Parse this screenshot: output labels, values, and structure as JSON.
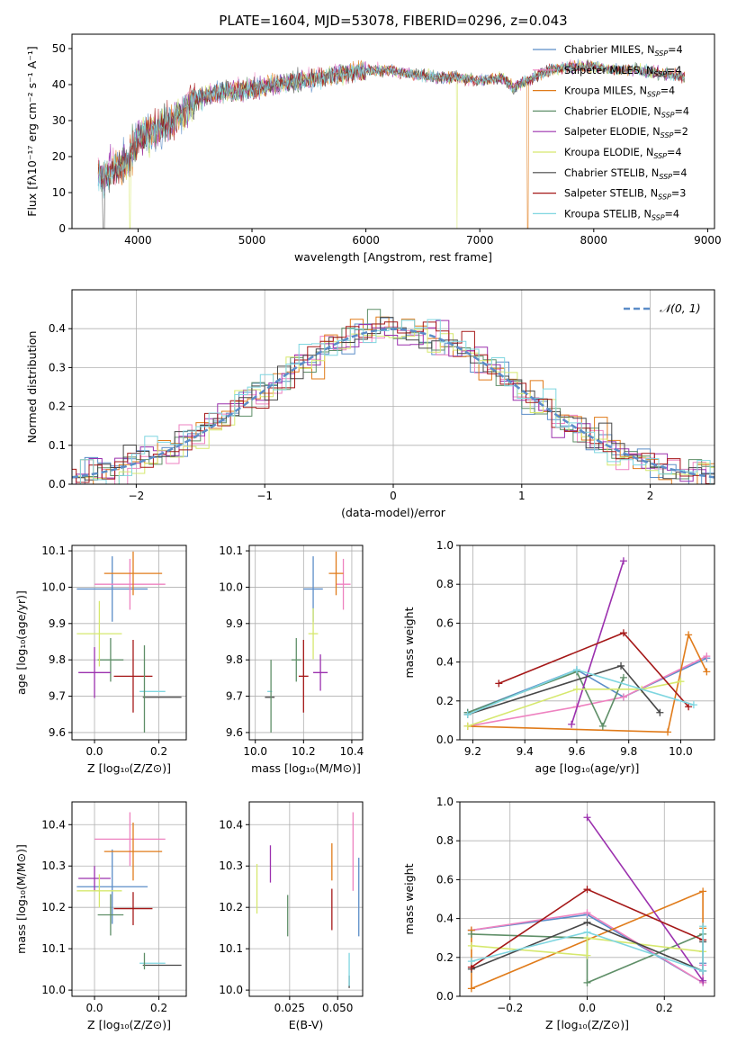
{
  "colors": {
    "c_miles": "#5b8dc8",
    "s_miles": "#ee82c0",
    "k_miles": "#e07b1a",
    "c_elodie": "#5f8f68",
    "s_elodie": "#9b30ae",
    "k_elodie": "#d6e86e",
    "c_stelib": "#474747",
    "s_stelib": "#a51818",
    "k_stelib": "#7fd6e0",
    "normal": "#5b8dc8"
  },
  "chart_data": [
    {
      "id": "spectrum",
      "type": "line",
      "title": "PLATE=1604, MJD=53078, FIBERID=0296, z=0.043",
      "xlabel": "wavelength [Angstrom, rest frame]",
      "ylabel": "Flux [fλ10⁻¹⁷ erg cm⁻² s⁻¹ A⁻¹]",
      "xlim": [
        3420,
        9060
      ],
      "ylim": [
        0,
        54
      ],
      "xticks": [
        "4000",
        "5000",
        "6000",
        "7000",
        "8000",
        "9000"
      ],
      "yticks": [
        "0",
        "10",
        "20",
        "30",
        "40",
        "50"
      ],
      "grid": false,
      "legend_position": "top-right",
      "continuum": [
        [
          3650,
          15
        ],
        [
          3700,
          14
        ],
        [
          3800,
          17
        ],
        [
          3900,
          18
        ],
        [
          4000,
          25
        ],
        [
          4100,
          27
        ],
        [
          4200,
          28
        ],
        [
          4300,
          30
        ],
        [
          4400,
          33
        ],
        [
          4500,
          36
        ],
        [
          4600,
          37
        ],
        [
          4800,
          38
        ],
        [
          5000,
          39
        ],
        [
          5200,
          40
        ],
        [
          5400,
          41
        ],
        [
          5600,
          42
        ],
        [
          5800,
          43
        ],
        [
          6000,
          44
        ],
        [
          6200,
          44
        ],
        [
          6400,
          43
        ],
        [
          6600,
          42
        ],
        [
          6800,
          42
        ],
        [
          7000,
          41
        ],
        [
          7200,
          42
        ],
        [
          7300,
          39
        ],
        [
          7400,
          41
        ],
        [
          7600,
          44
        ],
        [
          7800,
          45
        ],
        [
          8000,
          45
        ],
        [
          8200,
          44
        ],
        [
          8400,
          44
        ],
        [
          8600,
          43
        ],
        [
          8800,
          42
        ]
      ],
      "series": [
        {
          "name": "Chabrier MILES, N_SSP=4",
          "color_key": "c_miles"
        },
        {
          "name": "Salpeter MILES, N_SSP=4",
          "color_key": "s_miles"
        },
        {
          "name": "Kroupa MILES, N_SSP=4",
          "color_key": "k_miles"
        },
        {
          "name": "Chabrier ELODIE, N_SSP=4",
          "color_key": "c_elodie"
        },
        {
          "name": "Salpeter ELODIE, N_SSP=2",
          "color_key": "s_elodie"
        },
        {
          "name": "Kroupa ELODIE, N_SSP=4",
          "color_key": "k_elodie"
        },
        {
          "name": "Chabrier STELIB, N_SSP=4",
          "color_key": "c_stelib"
        },
        {
          "name": "Salpeter STELIB, N_SSP=3",
          "color_key": "s_stelib"
        },
        {
          "name": "Kroupa STELIB, N_SSP=4",
          "color_key": "k_stelib"
        }
      ],
      "legend_parts": [
        {
          "pre": "Chabrier MILES, N",
          "sub": "SSP",
          "post": "=4",
          "color_key": "c_miles"
        },
        {
          "pre": "Salpeter MILES, N",
          "sub": "SSP",
          "post": "=4",
          "color_key": "s_miles"
        },
        {
          "pre": "Kroupa MILES, N",
          "sub": "SSP",
          "post": "=4",
          "color_key": "k_miles"
        },
        {
          "pre": "Chabrier ELODIE, N",
          "sub": "SSP",
          "post": "=4",
          "color_key": "c_elodie"
        },
        {
          "pre": "Salpeter ELODIE, N",
          "sub": "SSP",
          "post": "=2",
          "color_key": "s_elodie"
        },
        {
          "pre": "Kroupa ELODIE, N",
          "sub": "SSP",
          "post": "=4",
          "color_key": "k_elodie"
        },
        {
          "pre": "Chabrier STELIB, N",
          "sub": "SSP",
          "post": "=4",
          "color_key": "c_stelib"
        },
        {
          "pre": "Salpeter STELIB, N",
          "sub": "SSP",
          "post": "=3",
          "color_key": "s_stelib"
        },
        {
          "pre": "Kroupa STELIB, N",
          "sub": "SSP",
          "post": "=4",
          "color_key": "k_stelib"
        }
      ],
      "drops": [
        {
          "color_key": "k_elodie",
          "x_start": 3925,
          "x_end": 3935
        },
        {
          "color_key": "k_elodie",
          "x_start": 6795,
          "x_end": 6805
        },
        {
          "color_key": "k_miles",
          "x_start": 7418,
          "x_end": 7428
        }
      ]
    },
    {
      "id": "residuals",
      "type": "histogram",
      "xlabel": "(data-model)/error",
      "ylabel": "Normed distribution",
      "xlim": [
        -2.5,
        2.5
      ],
      "ylim": [
        0,
        0.5
      ],
      "xticks": [
        "−2",
        "−1",
        "0",
        "1",
        "2"
      ],
      "yticks": [
        "0.0",
        "0.1",
        "0.2",
        "0.3",
        "0.4"
      ],
      "grid": true,
      "legend_position": "top-right",
      "legend_label": "𝒩(0, 1)",
      "bin_width": 0.1
    },
    {
      "id": "age_vs_Z",
      "type": "errorbar",
      "xlabel": "Z [log₁₀(Z/Z⊙)]",
      "ylabel": "age  [log₁₀(age/yr)]",
      "xlim": [
        -0.07,
        0.285
      ],
      "ylim": [
        9.58,
        10.115
      ],
      "xticks": [
        "0.0",
        "0.2"
      ],
      "yticks": [
        "9.6",
        "9.7",
        "9.8",
        "9.9",
        "10.0",
        "10.1"
      ],
      "grid": true,
      "points": [
        {
          "color_key": "c_miles",
          "x": 0.055,
          "y": 9.995,
          "xerr": 0.11,
          "yerr": 0.09
        },
        {
          "color_key": "s_miles",
          "x": 0.11,
          "y": 10.008,
          "xerr": 0.11,
          "yerr": 0.07
        },
        {
          "color_key": "k_miles",
          "x": 0.12,
          "y": 10.038,
          "xerr": 0.09,
          "yerr": 0.06
        },
        {
          "color_key": "c_elodie",
          "x": 0.05,
          "y": 9.8,
          "xerr": 0.04,
          "yerr": 0.06
        },
        {
          "color_key": "s_elodie",
          "x": 0.0,
          "y": 9.765,
          "xerr": 0.05,
          "yerr": 0.07
        },
        {
          "color_key": "k_elodie",
          "x": 0.015,
          "y": 9.872,
          "xerr": 0.07,
          "yerr": 0.09
        },
        {
          "color_key": "c_stelib",
          "x": 0.21,
          "y": 9.697,
          "xerr": 0.06,
          "yerr": 0.0
        },
        {
          "color_key": "s_stelib",
          "x": 0.12,
          "y": 9.755,
          "xerr": 0.06,
          "yerr": 0.1
        },
        {
          "color_key": "k_stelib",
          "x": 0.18,
          "y": 9.713,
          "xerr": 0.04,
          "yerr": 0.0
        },
        {
          "color_key": "c_elodie",
          "x": 0.155,
          "y": 9.72,
          "xerr": 0.0,
          "yerr": 0.12
        }
      ]
    },
    {
      "id": "age_vs_mass",
      "type": "errorbar",
      "xlabel": "mass [log₁₀(M/M⊙)]",
      "ylabel": "",
      "xlim": [
        9.975,
        10.445
      ],
      "ylim": [
        9.58,
        10.115
      ],
      "xticks": [
        "10.0",
        "10.2",
        "10.4"
      ],
      "yticks": [
        "9.6",
        "9.7",
        "9.8",
        "9.9",
        "10.0",
        "10.1"
      ],
      "grid": true,
      "points": [
        {
          "color_key": "c_miles",
          "x": 10.24,
          "y": 9.995,
          "xerr": 0.04,
          "yerr": 0.09
        },
        {
          "color_key": "s_miles",
          "x": 10.365,
          "y": 10.008,
          "xerr": 0.03,
          "yerr": 0.07
        },
        {
          "color_key": "k_miles",
          "x": 10.335,
          "y": 10.038,
          "xerr": 0.03,
          "yerr": 0.06
        },
        {
          "color_key": "c_elodie",
          "x": 10.17,
          "y": 9.8,
          "xerr": 0.02,
          "yerr": 0.06
        },
        {
          "color_key": "s_elodie",
          "x": 10.27,
          "y": 9.765,
          "xerr": 0.03,
          "yerr": 0.05
        },
        {
          "color_key": "k_elodie",
          "x": 10.24,
          "y": 9.872,
          "xerr": 0.02,
          "yerr": 0.07
        },
        {
          "color_key": "c_stelib",
          "x": 10.06,
          "y": 9.697,
          "xerr": 0.02,
          "yerr": 0.0
        },
        {
          "color_key": "s_stelib",
          "x": 10.2,
          "y": 9.755,
          "xerr": 0.02,
          "yerr": 0.1
        },
        {
          "color_key": "k_stelib",
          "x": 10.06,
          "y": 9.713,
          "xerr": 0.01,
          "yerr": 0.0
        },
        {
          "color_key": "c_elodie",
          "x": 10.065,
          "y": 9.7,
          "xerr": 0.0,
          "yerr": 0.1
        }
      ]
    },
    {
      "id": "weight_vs_age",
      "type": "line",
      "xlabel": "age  [log₁₀(age/yr)]",
      "ylabel": "mass weight",
      "xlim": [
        9.15,
        10.13
      ],
      "ylim": [
        0,
        1.0
      ],
      "xticks": [
        "9.2",
        "9.4",
        "9.6",
        "9.8",
        "10.0"
      ],
      "yticks": [
        "0.0",
        "0.2",
        "0.4",
        "0.6",
        "0.8",
        "1.0"
      ],
      "grid": true,
      "series": [
        {
          "color_key": "c_miles",
          "x": [
            9.18,
            9.6,
            9.78,
            10.1
          ],
          "y": [
            0.14,
            0.36,
            0.22,
            0.42
          ]
        },
        {
          "color_key": "s_miles",
          "x": [
            9.18,
            9.6,
            9.78,
            10.1
          ],
          "y": [
            0.07,
            0.17,
            0.22,
            0.43
          ]
        },
        {
          "color_key": "k_miles",
          "x": [
            9.18,
            9.95,
            10.03,
            10.1
          ],
          "y": [
            0.07,
            0.04,
            0.54,
            0.35
          ]
        },
        {
          "color_key": "c_elodie",
          "x": [
            9.18,
            9.6,
            9.7,
            9.78
          ],
          "y": [
            0.14,
            0.35,
            0.07,
            0.32
          ]
        },
        {
          "color_key": "s_elodie",
          "x": [
            9.58,
            9.78
          ],
          "y": [
            0.08,
            0.92
          ]
        },
        {
          "color_key": "k_elodie",
          "x": [
            9.18,
            9.6,
            9.85,
            10.0
          ],
          "y": [
            0.07,
            0.26,
            0.26,
            0.3
          ]
        },
        {
          "color_key": "c_stelib",
          "x": [
            9.18,
            9.77,
            9.92
          ],
          "y": [
            0.13,
            0.38,
            0.14
          ]
        },
        {
          "color_key": "s_stelib",
          "x": [
            9.3,
            9.78,
            10.03
          ],
          "y": [
            0.29,
            0.55,
            0.17
          ]
        },
        {
          "color_key": "k_stelib",
          "x": [
            9.18,
            9.6,
            10.05
          ],
          "y": [
            0.13,
            0.36,
            0.18
          ]
        }
      ]
    },
    {
      "id": "mass_vs_Z",
      "type": "errorbar",
      "xlabel": "Z [log₁₀(Z/Z⊙)]",
      "ylabel": "mass [log₁₀(M/M⊙)]",
      "xlim": [
        -0.07,
        0.285
      ],
      "ylim": [
        9.985,
        10.455
      ],
      "xticks": [
        "0.0",
        "0.2"
      ],
      "yticks": [
        "10.0",
        "10.1",
        "10.2",
        "10.3",
        "10.4"
      ],
      "grid": true,
      "points": [
        {
          "color_key": "c_miles",
          "x": 0.055,
          "y": 10.25,
          "xerr": 0.11,
          "yerr": 0.09
        },
        {
          "color_key": "s_miles",
          "x": 0.11,
          "y": 10.365,
          "xerr": 0.11,
          "yerr": 0.065
        },
        {
          "color_key": "k_miles",
          "x": 0.12,
          "y": 10.335,
          "xerr": 0.09,
          "yerr": 0.07
        },
        {
          "color_key": "c_elodie",
          "x": 0.05,
          "y": 10.182,
          "xerr": 0.04,
          "yerr": 0.05
        },
        {
          "color_key": "s_elodie",
          "x": 0.0,
          "y": 10.27,
          "xerr": 0.05,
          "yerr": 0.03
        },
        {
          "color_key": "k_elodie",
          "x": 0.015,
          "y": 10.24,
          "xerr": 0.07,
          "yerr": 0.04
        },
        {
          "color_key": "c_stelib",
          "x": 0.21,
          "y": 10.06,
          "xerr": 0.06,
          "yerr": 0.0
        },
        {
          "color_key": "s_stelib",
          "x": 0.12,
          "y": 10.197,
          "xerr": 0.06,
          "yerr": 0.04
        },
        {
          "color_key": "k_stelib",
          "x": 0.18,
          "y": 10.065,
          "xerr": 0.04,
          "yerr": 0.0
        },
        {
          "color_key": "c_elodie",
          "x": 0.155,
          "y": 10.07,
          "xerr": 0.0,
          "yerr": 0.02
        }
      ]
    },
    {
      "id": "mass_vs_EBV",
      "type": "errorbar",
      "xlabel": "E(B-V)",
      "ylabel": "",
      "xlim": [
        0.004,
        0.063
      ],
      "ylim": [
        9.985,
        10.455
      ],
      "xticks": [
        "0.025",
        "0.050"
      ],
      "xtick_values": [
        0.025,
        0.05
      ],
      "yticks": [
        "10.0",
        "10.1",
        "10.2",
        "10.3",
        "10.4"
      ],
      "grid": true,
      "points": [
        {
          "color_key": "c_miles",
          "x": 0.061,
          "y": 10.225,
          "xerr": 0.0,
          "yerr": 0.095
        },
        {
          "color_key": "s_miles",
          "x": 0.058,
          "y": 10.335,
          "xerr": 0.0,
          "yerr": 0.095
        },
        {
          "color_key": "k_miles",
          "x": 0.047,
          "y": 10.31,
          "xerr": 0.0,
          "yerr": 0.045
        },
        {
          "color_key": "c_elodie",
          "x": 0.024,
          "y": 10.18,
          "xerr": 0.0,
          "yerr": 0.05
        },
        {
          "color_key": "s_elodie",
          "x": 0.015,
          "y": 10.305,
          "xerr": 0.0,
          "yerr": 0.045
        },
        {
          "color_key": "k_elodie",
          "x": 0.008,
          "y": 10.245,
          "xerr": 0.0,
          "yerr": 0.06
        },
        {
          "color_key": "c_stelib",
          "x": 0.056,
          "y": 10.02,
          "xerr": 0.0,
          "yerr": 0.015
        },
        {
          "color_key": "s_stelib",
          "x": 0.047,
          "y": 10.195,
          "xerr": 0.0,
          "yerr": 0.05
        },
        {
          "color_key": "k_stelib",
          "x": 0.056,
          "y": 10.05,
          "xerr": 0.0,
          "yerr": 0.04
        }
      ]
    },
    {
      "id": "weight_vs_Z",
      "type": "line",
      "xlabel": "Z [log₁₀(Z/Z⊙)]",
      "ylabel": "mass weight",
      "xlim": [
        -0.33,
        0.33
      ],
      "ylim": [
        0,
        1.0
      ],
      "xticks": [
        "−0.2",
        "0.0",
        "0.2"
      ],
      "xtick_values": [
        -0.2,
        0.0,
        0.2
      ],
      "yticks": [
        "0.0",
        "0.2",
        "0.4",
        "0.6",
        "0.8",
        "1.0"
      ],
      "grid": true,
      "series": [
        {
          "color_key": "c_miles",
          "x": [
            -0.3,
            0.0,
            0.3,
            0.3
          ],
          "y": [
            0.34,
            0.42,
            0.07,
            0.17
          ]
        },
        {
          "color_key": "s_miles",
          "x": [
            -0.3,
            0.0,
            0.3,
            0.3
          ],
          "y": [
            0.34,
            0.43,
            0.07,
            0.16
          ]
        },
        {
          "color_key": "k_miles",
          "x": [
            -0.3,
            -0.3,
            0.3,
            0.3
          ],
          "y": [
            0.34,
            0.04,
            0.54,
            0.35
          ]
        },
        {
          "color_key": "c_elodie",
          "x": [
            -0.3,
            0.0,
            0.0,
            0.3
          ],
          "y": [
            0.32,
            0.3,
            0.07,
            0.32
          ]
        },
        {
          "color_key": "s_elodie",
          "x": [
            0.0,
            0.3
          ],
          "y": [
            0.92,
            0.08
          ]
        },
        {
          "color_key": "k_elodie",
          "x": [
            -0.3,
            0.0,
            0.0,
            0.3
          ],
          "y": [
            0.26,
            0.21,
            0.3,
            0.23
          ]
        },
        {
          "color_key": "c_stelib",
          "x": [
            -0.3,
            0.0,
            0.3,
            0.3
          ],
          "y": [
            0.14,
            0.38,
            0.13,
            0.28
          ]
        },
        {
          "color_key": "s_stelib",
          "x": [
            -0.3,
            0.0,
            0.3
          ],
          "y": [
            0.15,
            0.55,
            0.29
          ]
        },
        {
          "color_key": "k_stelib",
          "x": [
            -0.3,
            0.0,
            0.3,
            0.3
          ],
          "y": [
            0.18,
            0.33,
            0.13,
            0.36
          ]
        }
      ]
    }
  ]
}
